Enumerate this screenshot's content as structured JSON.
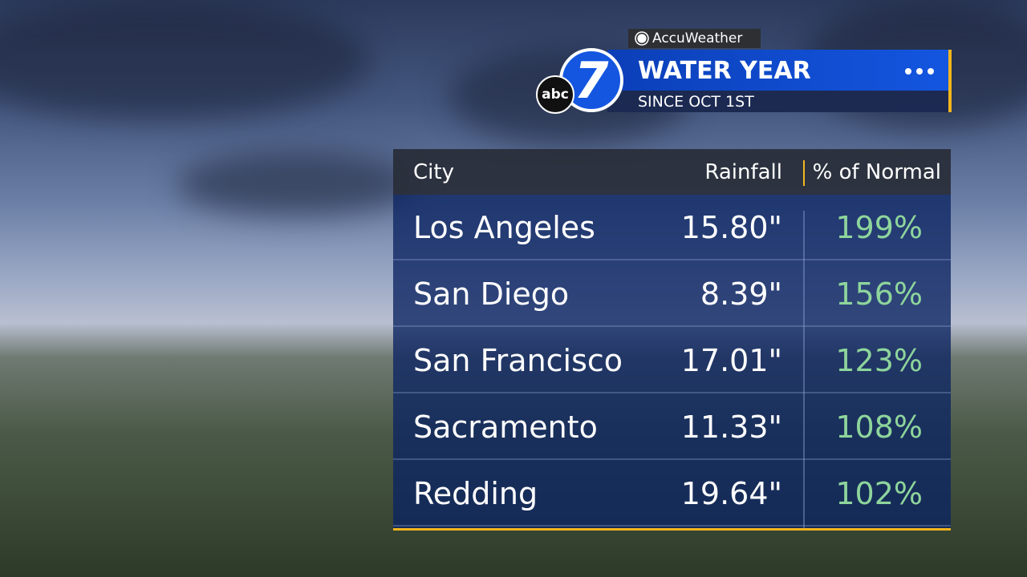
{
  "header": {
    "brand": "AccuWeather",
    "logo_small": "abc",
    "logo_number": "7",
    "title": "WATER YEAR",
    "subtitle": "SINCE OCT 1ST"
  },
  "table": {
    "columns": [
      "City",
      "Rainfall",
      "% of Normal"
    ],
    "rows": [
      [
        "Los Angeles",
        "15.80\"",
        "199%"
      ],
      [
        "San Diego",
        "8.39\"",
        "156%"
      ],
      [
        "San Francisco",
        "17.01\"",
        "123%"
      ],
      [
        "Sacramento",
        "11.33\"",
        "108%"
      ],
      [
        "Redding",
        "19.64\"",
        "102%"
      ]
    ]
  }
}
